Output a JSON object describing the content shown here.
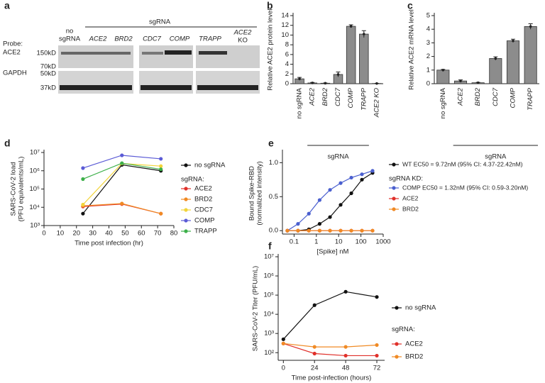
{
  "blot": {
    "panel": "a",
    "probe_label": "Probe:",
    "probes": [
      "ACE2",
      "GAPDH"
    ],
    "header": "sgRNA",
    "lanes": [
      [
        "no",
        "sgRNA"
      ],
      [
        "ACE2"
      ],
      [
        "BRD2"
      ],
      [
        "CDC7"
      ],
      [
        "COMP"
      ],
      [
        "TRAPP"
      ],
      [
        "ACE2",
        "KO"
      ]
    ],
    "markers": [
      "150kD",
      "70kD",
      "50kD",
      "37kD"
    ]
  },
  "chart_data": [
    {
      "type": "bar",
      "panel": "b",
      "ylabel": [
        "Relative ACE2 protein level"
      ],
      "group_label": "sgRNA",
      "categories": [
        "no sgRNA",
        "ACE2",
        "BRD2",
        "CDC7",
        "COMP",
        "TRAPP",
        "ACE2 KO"
      ],
      "values": [
        1.0,
        0.15,
        0.1,
        1.9,
        11.8,
        10.2,
        0.05
      ],
      "errors": [
        0.3,
        0.1,
        0.05,
        0.5,
        0.3,
        0.7,
        0.02
      ],
      "color": "#8c8c8c",
      "ylim": [
        0,
        14
      ],
      "yticks": [
        0,
        2,
        4,
        6,
        8,
        10,
        12,
        14
      ]
    },
    {
      "type": "bar",
      "panel": "c",
      "ylabel": [
        "Relative ACE2 mRNA level"
      ],
      "group_label": "sgRNA",
      "categories": [
        "no sgRNA",
        "ACE2",
        "BRD2",
        "CDC7",
        "COMP",
        "TRAPP"
      ],
      "values": [
        1.0,
        0.2,
        0.07,
        1.85,
        3.15,
        4.2
      ],
      "errors": [
        0.05,
        0.08,
        0.03,
        0.12,
        0.12,
        0.2
      ],
      "color": "#8c8c8c",
      "ylim": [
        0,
        5
      ],
      "yticks": [
        0,
        1,
        2,
        3,
        4,
        5
      ]
    },
    {
      "type": "line",
      "panel": "d",
      "ylabel": [
        "SARS-CoV-2  load",
        "(PFU equivalents/mL)"
      ],
      "xlabel": "Time post infection (hr)",
      "legend_heading": "sgRNA:",
      "ylog": true,
      "x": [
        24,
        48,
        72
      ],
      "xlim": [
        0,
        80
      ],
      "xticks": [
        0,
        10,
        20,
        30,
        40,
        50,
        60,
        70,
        80
      ],
      "ylim": [
        1000,
        10000000
      ],
      "yticks": [
        {
          "value": 1000,
          "label": "10³"
        },
        {
          "value": 10000,
          "label": "10⁴"
        },
        {
          "value": 100000,
          "label": "10⁵"
        },
        {
          "value": 1000000,
          "label": "10⁶"
        },
        {
          "value": 10000000,
          "label": "10⁷"
        }
      ],
      "series": [
        {
          "name": "no sgRNA",
          "color": "#111111",
          "values": [
            4500,
            2100000,
            1000000
          ]
        },
        {
          "name": "ACE2",
          "color": "#e0302a",
          "values": [
            11000,
            15000,
            4500
          ]
        },
        {
          "name": "BRD2",
          "color": "#f08a24",
          "values": [
            12000,
            16000,
            4500
          ]
        },
        {
          "name": "CDC7",
          "color": "#f2d43a",
          "values": [
            14000,
            2500000,
            1800000
          ]
        },
        {
          "name": "COMP",
          "color": "#5b5bd6",
          "values": [
            1400000,
            7000000,
            4500000
          ]
        },
        {
          "name": "TRAPP",
          "color": "#3db04a",
          "values": [
            350000,
            2600000,
            1200000
          ]
        }
      ]
    },
    {
      "type": "line",
      "panel": "e",
      "ylabel": [
        "Bound Spike-RBD",
        "(normalized intensity)"
      ],
      "xlabel": "[Spike] nM",
      "legend_heading": "sgRNA KD:",
      "xlog": true,
      "x": [
        0.05,
        0.15,
        0.46,
        1.4,
        4.1,
        12.3,
        37,
        111,
        333
      ],
      "xlim": [
        0.03,
        1000
      ],
      "xticks": [
        0.1,
        1,
        10,
        100,
        1000
      ],
      "ylim": [
        -0.05,
        1.15
      ],
      "yticks": [
        {
          "value": 0,
          "label": "0.0"
        },
        {
          "value": 0.5,
          "label": "0.5"
        },
        {
          "value": 1,
          "label": "1.0"
        }
      ],
      "series": [
        {
          "name": "WT EC50 = 9.72nM (95% CI: 4.37-22.42nM)",
          "color": "#111111",
          "values": [
            0,
            0,
            0.02,
            0.1,
            0.2,
            0.38,
            0.55,
            0.75,
            0.85
          ]
        },
        {
          "name": "COMP EC50 = 1.32nM (95% CI: 0.59-3.20nM)",
          "color": "#4a5fcf",
          "values": [
            0,
            0.1,
            0.25,
            0.45,
            0.6,
            0.7,
            0.78,
            0.83,
            0.88
          ]
        },
        {
          "name": "ACE2",
          "color": "#e0302a",
          "values": [
            0,
            0,
            0,
            0,
            0,
            0,
            0,
            0,
            0
          ]
        },
        {
          "name": "BRD2",
          "color": "#f08a24",
          "values": [
            0,
            0,
            0,
            0,
            0,
            0,
            0,
            0,
            0
          ]
        }
      ]
    },
    {
      "type": "line",
      "panel": "f",
      "ylabel": [
        "SARS-CoV-2 Titer (PFU/mL)"
      ],
      "xlabel": "Time post-infection (hours)",
      "legend_heading": "sgRNA:",
      "ylog": true,
      "x": [
        0,
        24,
        48,
        72
      ],
      "xlim": [
        -4,
        78
      ],
      "xticks": [
        0,
        24,
        48,
        72
      ],
      "ylim": [
        40,
        10000000
      ],
      "yticks": [
        {
          "value": 100,
          "label": "10²"
        },
        {
          "value": 1000,
          "label": "10³"
        },
        {
          "value": 10000,
          "label": "10⁴"
        },
        {
          "value": 100000,
          "label": "10⁵"
        },
        {
          "value": 1000000,
          "label": "10⁶"
        },
        {
          "value": 10000000,
          "label": "10⁷"
        }
      ],
      "series": [
        {
          "name": "no sgRNA",
          "color": "#111111",
          "values": [
            500,
            30000,
            150000,
            80000
          ]
        },
        {
          "name": "ACE2",
          "color": "#e0302a",
          "values": [
            300,
            90,
            70,
            70
          ]
        },
        {
          "name": "BRD2",
          "color": "#f08a24",
          "values": [
            300,
            200,
            200,
            250
          ]
        }
      ]
    }
  ]
}
